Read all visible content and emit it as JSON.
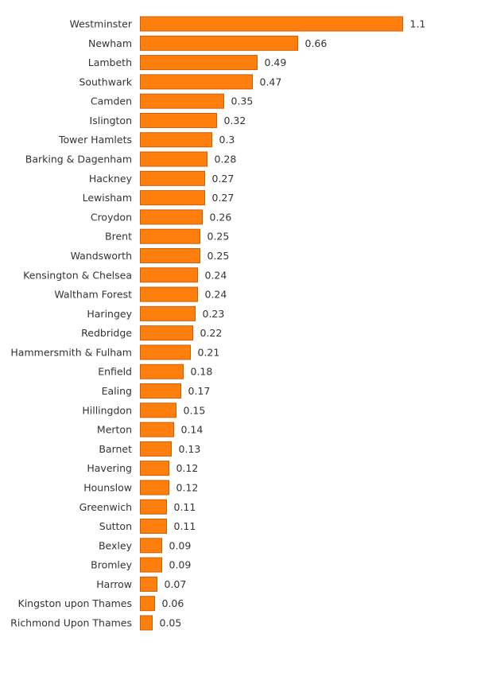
{
  "chart_data": {
    "type": "bar",
    "orientation": "horizontal",
    "categories": [
      "Westminster",
      "Newham",
      "Lambeth",
      "Southwark",
      "Camden",
      "Islington",
      "Tower Hamlets",
      "Barking & Dagenham",
      "Hackney",
      "Lewisham",
      "Croydon",
      "Brent",
      "Wandsworth",
      "Kensington & Chelsea",
      "Waltham Forest",
      "Haringey",
      "Redbridge",
      "Hammersmith & Fulham",
      "Enfield",
      "Ealing",
      "Hillingdon",
      "Merton",
      "Barnet",
      "Havering",
      "Hounslow",
      "Greenwich",
      "Sutton",
      "Bexley",
      "Bromley",
      "Harrow",
      "Kingston upon Thames",
      "Richmond Upon Thames"
    ],
    "values": [
      1.1,
      0.66,
      0.49,
      0.47,
      0.35,
      0.32,
      0.3,
      0.28,
      0.27,
      0.27,
      0.26,
      0.25,
      0.25,
      0.24,
      0.24,
      0.23,
      0.22,
      0.21,
      0.18,
      0.17,
      0.15,
      0.14,
      0.13,
      0.12,
      0.12,
      0.11,
      0.11,
      0.09,
      0.09,
      0.07,
      0.06,
      0.05
    ],
    "xlim": [
      0,
      1.1
    ],
    "grid": false,
    "data_labels": true,
    "colors": {
      "bar_fill": "#ff7f0e",
      "bar_stroke": "#cc5f00"
    }
  }
}
